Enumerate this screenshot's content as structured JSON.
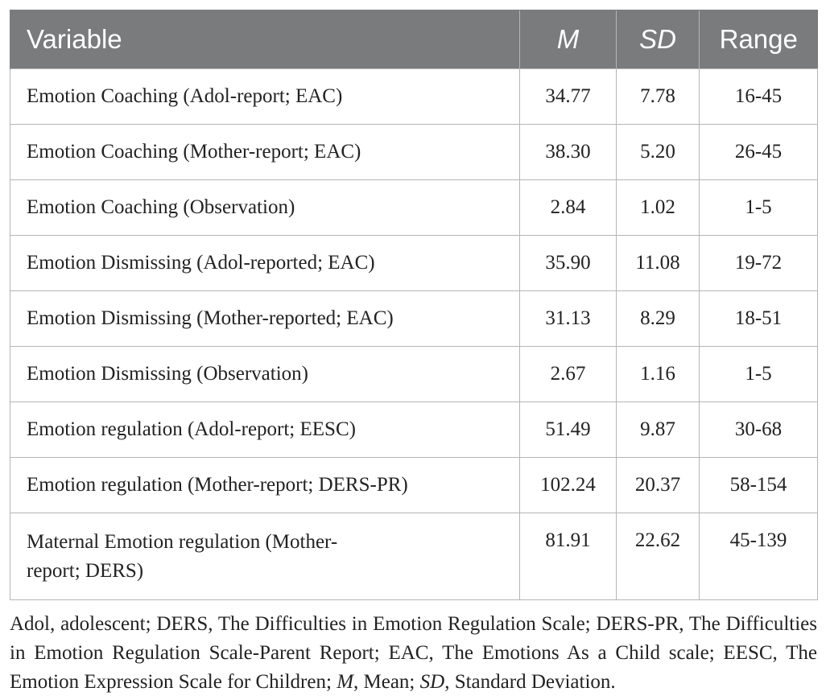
{
  "table": {
    "headers": {
      "variable": "Variable",
      "m": "M",
      "sd": "SD",
      "range": "Range"
    },
    "rows": [
      {
        "variable": "Emotion Coaching (Adol-report; EAC)",
        "m": "34.77",
        "sd": "7.78",
        "range": "16-45"
      },
      {
        "variable": "Emotion Coaching (Mother-report; EAC)",
        "m": "38.30",
        "sd": "5.20",
        "range": "26-45"
      },
      {
        "variable": "Emotion Coaching (Observation)",
        "m": "2.84",
        "sd": "1.02",
        "range": "1-5"
      },
      {
        "variable": "Emotion Dismissing (Adol-reported; EAC)",
        "m": "35.90",
        "sd": "11.08",
        "range": "19-72"
      },
      {
        "variable": "Emotion Dismissing (Mother-reported; EAC)",
        "m": "31.13",
        "sd": "8.29",
        "range": "18-51"
      },
      {
        "variable": "Emotion Dismissing (Observation)",
        "m": "2.67",
        "sd": "1.16",
        "range": "1-5"
      },
      {
        "variable": "Emotion regulation (Adol-report; EESC)",
        "m": "51.49",
        "sd": "9.87",
        "range": "30-68"
      },
      {
        "variable": "Emotion regulation (Mother-report; DERS-PR)",
        "m": "102.24",
        "sd": "20.37",
        "range": "58-154"
      },
      {
        "variable_line1": "Maternal Emotion regulation (Mother-",
        "variable_line2": "report; DERS)",
        "m": "81.91",
        "sd": "22.62",
        "range": "45-139"
      }
    ]
  },
  "footnote": {
    "part1": "Adol, adolescent; DERS, The Difficulties in Emotion Regulation Scale; DERS-PR, The Difficulties in Emotion Regulation Scale-Parent Report; EAC, The Emotions As a Child scale; EESC, The Emotion Expression Scale for Children; ",
    "m_abbr": "M",
    "part2": ", Mean; ",
    "sd_abbr": "SD",
    "part3": ", Standard Deviation."
  }
}
